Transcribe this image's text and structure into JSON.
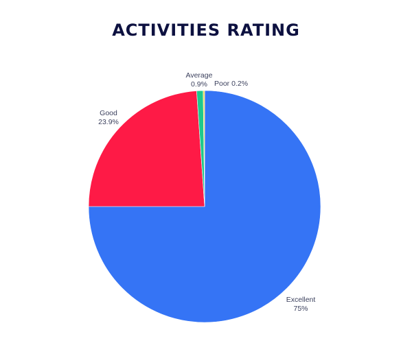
{
  "chart_data": {
    "type": "pie",
    "title": "ACTIVITIES RATING",
    "slices": [
      {
        "label": "Excellent",
        "value": 75,
        "display": "75%",
        "color": "#3574f5"
      },
      {
        "label": "Good",
        "value": 23.9,
        "display": "23.9%",
        "color": "#fe1a46"
      },
      {
        "label": "Average",
        "value": 0.9,
        "display": "0.9%",
        "color": "#1ec98c"
      },
      {
        "label": "Poor",
        "value": 0.2,
        "display": "0.2%",
        "color": "#f5d23b"
      }
    ]
  }
}
